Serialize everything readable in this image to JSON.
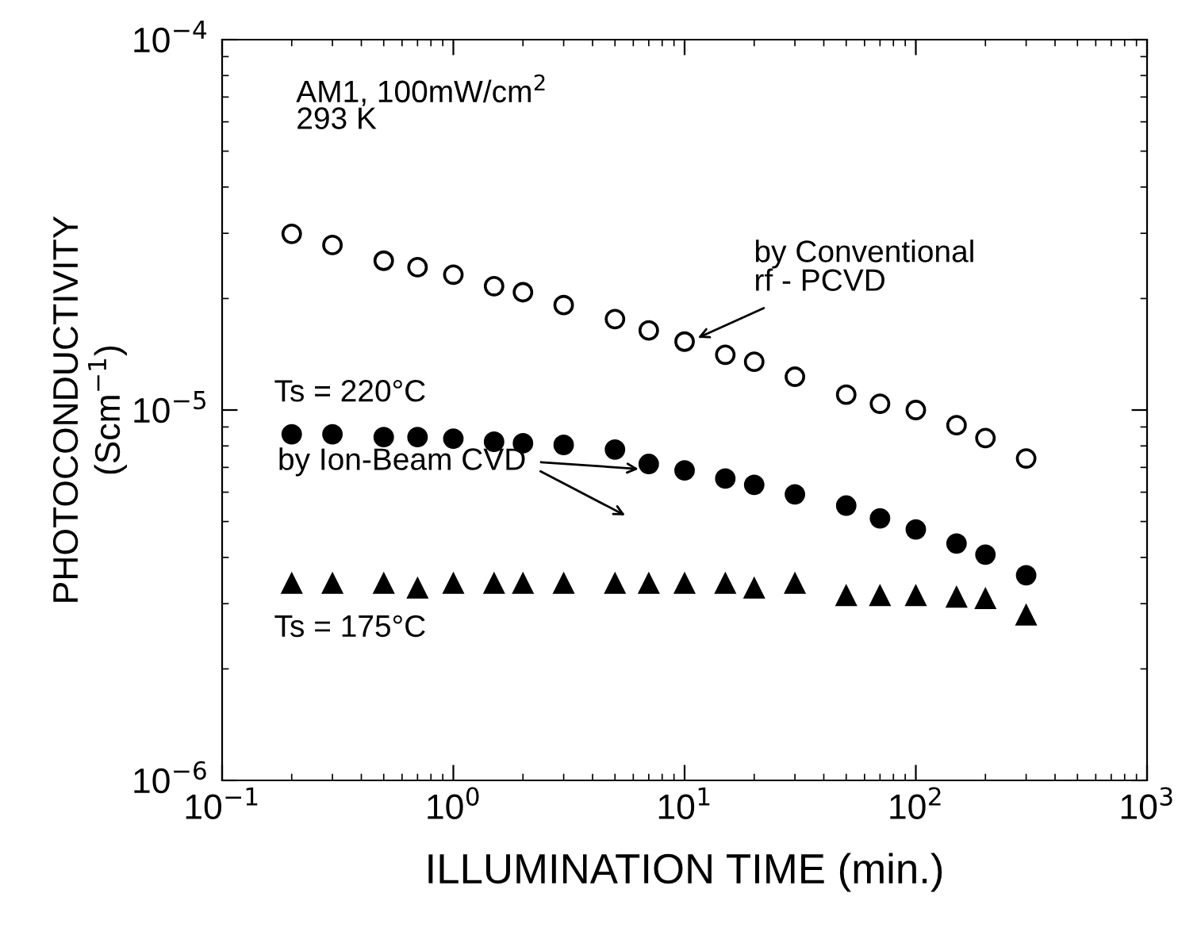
{
  "chart_data": {
    "type": "scatter",
    "xlabel": "ILLUMINATION TIME (min.)",
    "ylabel": "PHOTOCONDUCTIVITY\n(Scm$^{−1}$)",
    "log": "xy",
    "xlim": [
      0.1,
      1000
    ],
    "ylim": [
      1e-06,
      0.0001
    ],
    "xticks": [
      {
        "value": 0.1,
        "label": "10$^{−1}$"
      },
      {
        "value": 1,
        "label": "10$^{0}$"
      },
      {
        "value": 10,
        "label": "10$^{1}$"
      },
      {
        "value": 100,
        "label": "10$^{2}$"
      },
      {
        "value": 1000,
        "label": "10$^{3}$"
      }
    ],
    "yticks": [
      {
        "value": 1e-06,
        "label": "10$^{−6}$"
      },
      {
        "value": 1e-05,
        "label": "10$^{−5}$"
      },
      {
        "value": 0.0001,
        "label": "10$^{−4}$"
      }
    ],
    "x": [
      0.2,
      0.3,
      0.5,
      0.7,
      1,
      1.5,
      2,
      3,
      5,
      7,
      10,
      15,
      20,
      30,
      50,
      70,
      100,
      150,
      200,
      300
    ],
    "series": [
      {
        "color": "#ffffff",
        "marker": "circle",
        "values": [
          2.99e-05,
          2.79e-05,
          2.53e-05,
          2.43e-05,
          2.32e-05,
          2.16e-05,
          2.08e-05,
          1.92e-05,
          1.76e-05,
          1.64e-05,
          1.53e-05,
          1.41e-05,
          1.35e-05,
          1.23e-05,
          1.1e-05,
          1.04e-05,
          1e-05,
          9.1e-06,
          8.4e-06,
          7.4e-06
        ]
      },
      {
        "name": "Ts = 220°C",
        "color": "#000000",
        "marker": "circle",
        "values": [
          8.6e-06,
          8.6e-06,
          8.45e-06,
          8.45e-06,
          8.37e-06,
          8.21e-06,
          8.13e-06,
          8.05e-06,
          7.82e-06,
          7.15e-06,
          6.87e-06,
          6.53e-06,
          6.28e-06,
          5.92e-06,
          5.52e-06,
          5.1e-06,
          4.76e-06,
          4.36e-06,
          4.07e-06,
          3.58e-06
        ]
      },
      {
        "name": "Ts = 175°C",
        "color": "#000000",
        "marker": "triangle",
        "values": [
          3.4e-06,
          3.4e-06,
          3.4e-06,
          3.3e-06,
          3.4e-06,
          3.4e-06,
          3.4e-06,
          3.4e-06,
          3.4e-06,
          3.4e-06,
          3.4e-06,
          3.4e-06,
          3.3e-06,
          3.4e-06,
          3.15e-06,
          3.15e-06,
          3.15e-06,
          3.12e-06,
          3.09e-06,
          2.79e-06
        ]
      }
    ],
    "annotations": [
      "AM1, 100mW/cm$^{2}$\n293 K",
      "by Conventional\nrf - PCVD",
      "by Ion-Beam CVD"
    ],
    "grid": false,
    "legend": false
  }
}
